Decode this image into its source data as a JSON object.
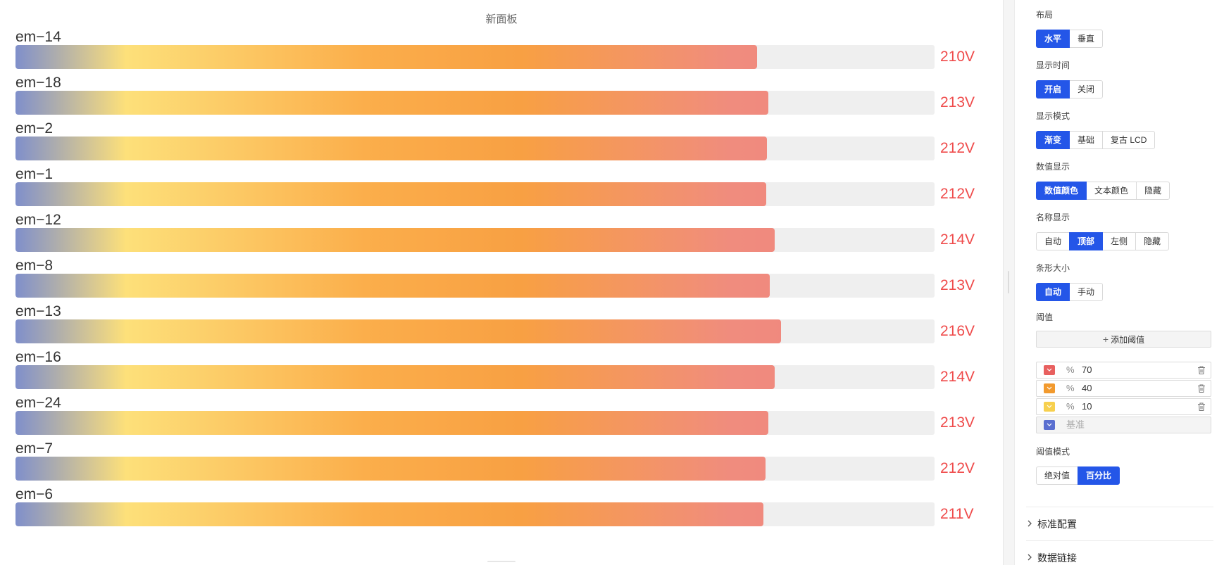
{
  "panel": {
    "title": "新面板"
  },
  "bars": [
    {
      "name": "em−14",
      "value": "210V",
      "fill": 0.807
    },
    {
      "name": "em−18",
      "value": "213V",
      "fill": 0.819
    },
    {
      "name": "em−2",
      "value": "212V",
      "fill": 0.818
    },
    {
      "name": "em−1",
      "value": "212V",
      "fill": 0.817
    },
    {
      "name": "em−12",
      "value": "214V",
      "fill": 0.826
    },
    {
      "name": "em−8",
      "value": "213V",
      "fill": 0.821
    },
    {
      "name": "em−13",
      "value": "216V",
      "fill": 0.833
    },
    {
      "name": "em−16",
      "value": "214V",
      "fill": 0.826
    },
    {
      "name": "em−24",
      "value": "213V",
      "fill": 0.819
    },
    {
      "name": "em−7",
      "value": "212V",
      "fill": 0.816
    },
    {
      "name": "em−6",
      "value": "211V",
      "fill": 0.814
    }
  ],
  "colors": {
    "value_text": "#ef4b4b",
    "accent": "#2456e8",
    "gradient": [
      "#7f8fcb",
      "#fde07a",
      "#fbae4b",
      "#f8a043",
      "#f08c7e",
      "#ee8080"
    ]
  },
  "settings": {
    "layout": {
      "label": "布局",
      "options": [
        "水平",
        "垂直"
      ],
      "active": 0
    },
    "show_time": {
      "label": "显示时间",
      "options": [
        "开启",
        "关闭"
      ],
      "active": 0
    },
    "display_mode": {
      "label": "显示模式",
      "options": [
        "渐变",
        "基础",
        "复古 LCD"
      ],
      "active": 0
    },
    "value_display": {
      "label": "数值显示",
      "options": [
        "数值颜色",
        "文本颜色",
        "隐藏"
      ],
      "active": 0
    },
    "name_display": {
      "label": "名称显示",
      "options": [
        "自动",
        "顶部",
        "左侧",
        "隐藏"
      ],
      "active": 1
    },
    "bar_size": {
      "label": "条形大小",
      "options": [
        "自动",
        "手动"
      ],
      "active": 0
    },
    "thresholds": {
      "label": "阈值",
      "add_label": "添加阈值",
      "percent_symbol": "%",
      "items": [
        {
          "value": "70",
          "color": "#e8605f"
        },
        {
          "value": "40",
          "color": "#f29a2e"
        },
        {
          "value": "10",
          "color": "#f7d04e"
        }
      ],
      "base": {
        "placeholder": "基准",
        "color": "#5a6fd0"
      }
    },
    "threshold_mode": {
      "label": "阈值模式",
      "options": [
        "绝对值",
        "百分比"
      ],
      "active": 1
    },
    "collapsibles": [
      "标准配置",
      "数据链接"
    ]
  }
}
